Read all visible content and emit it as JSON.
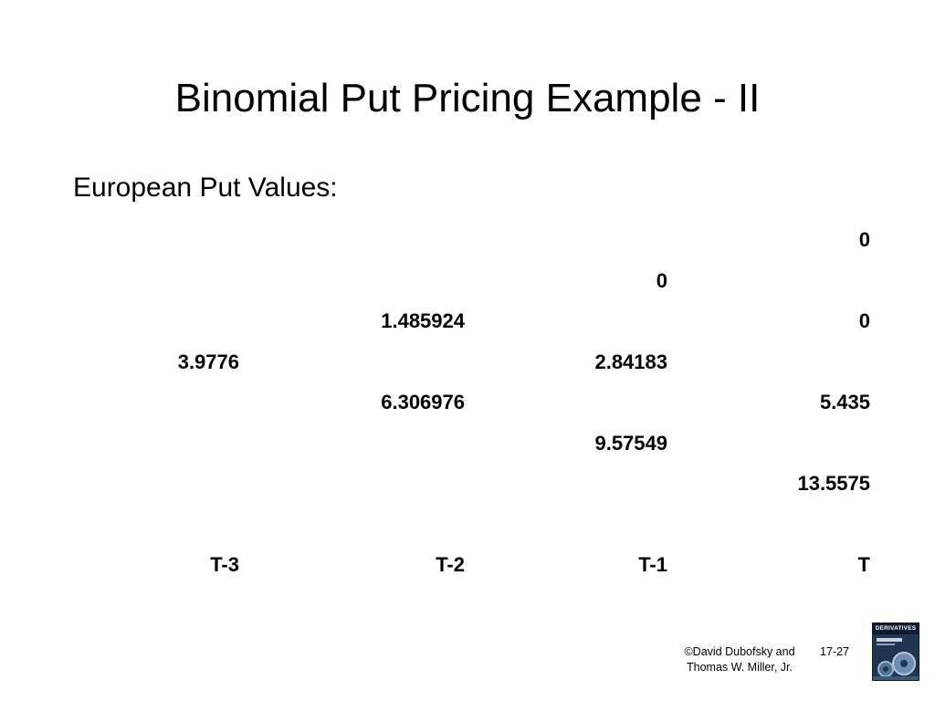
{
  "slide": {
    "title": "Binomial Put Pricing Example - II",
    "subtitle": "European Put Values:"
  },
  "tree": {
    "periods": [
      "T-3",
      "T-2",
      "T-1",
      "T"
    ],
    "values": {
      "t_minus_3": [
        "3.9776"
      ],
      "t_minus_2": [
        "1.485924",
        "6.306976"
      ],
      "t_minus_1": [
        "0",
        "2.84183",
        "9.57549"
      ],
      "t": [
        "0",
        "0",
        "5.435",
        "13.5575"
      ]
    }
  },
  "footer": {
    "credit_line1": "©David Dubofsky and",
    "credit_line2": "Thomas W. Miller, Jr.",
    "page_number": "17-27",
    "book_title": "DERIVATIVES"
  },
  "colors": {
    "text": "#000000",
    "background": "#ffffff",
    "book_cover": "#1f3552"
  }
}
